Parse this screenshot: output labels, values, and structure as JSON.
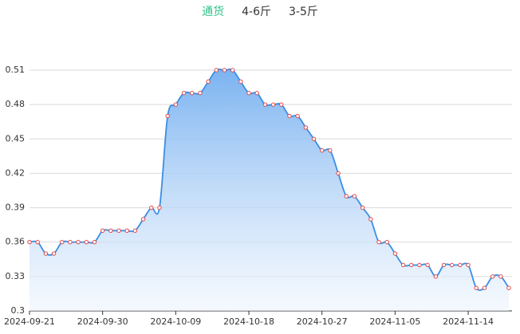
{
  "tabs": {
    "items": [
      "通货",
      "4-6斤",
      "3-5斤"
    ],
    "active": 0,
    "active_color": "#2fc38a"
  },
  "chart_data": {
    "type": "line",
    "categories": [
      "2024-09-21",
      null,
      null,
      null,
      null,
      null,
      null,
      null,
      null,
      "2024-09-30",
      null,
      null,
      null,
      null,
      null,
      null,
      null,
      null,
      "2024-10-09",
      null,
      null,
      null,
      null,
      null,
      null,
      null,
      null,
      "2024-10-18",
      null,
      null,
      null,
      null,
      null,
      null,
      null,
      null,
      "2024-10-27",
      null,
      null,
      null,
      null,
      null,
      null,
      null,
      null,
      "2024-11-05",
      null,
      null,
      null,
      null,
      null,
      null,
      null,
      null,
      "2024-11-14",
      null,
      null,
      null,
      null,
      null
    ],
    "values": [
      0.36,
      0.36,
      0.35,
      0.35,
      0.36,
      0.36,
      0.36,
      0.36,
      0.36,
      0.37,
      0.37,
      0.37,
      0.37,
      0.37,
      0.38,
      0.39,
      0.39,
      0.47,
      0.48,
      0.49,
      0.49,
      0.49,
      0.5,
      0.51,
      0.51,
      0.51,
      0.5,
      0.49,
      0.49,
      0.48,
      0.48,
      0.48,
      0.47,
      0.47,
      0.46,
      0.45,
      0.44,
      0.44,
      0.42,
      0.4,
      0.4,
      0.39,
      0.38,
      0.36,
      0.36,
      0.35,
      0.34,
      0.34,
      0.34,
      0.34,
      0.33,
      0.34,
      0.34,
      0.34,
      0.34,
      0.32,
      0.32,
      0.33,
      0.33,
      0.32
    ],
    "color": "#3a8ee6",
    "marker_color": "#e04848",
    "ylim": [
      0.3,
      0.51
    ],
    "yticks": [
      0.3,
      0.33,
      0.36,
      0.39,
      0.42,
      0.45,
      0.48,
      0.51
    ],
    "grid": true
  }
}
